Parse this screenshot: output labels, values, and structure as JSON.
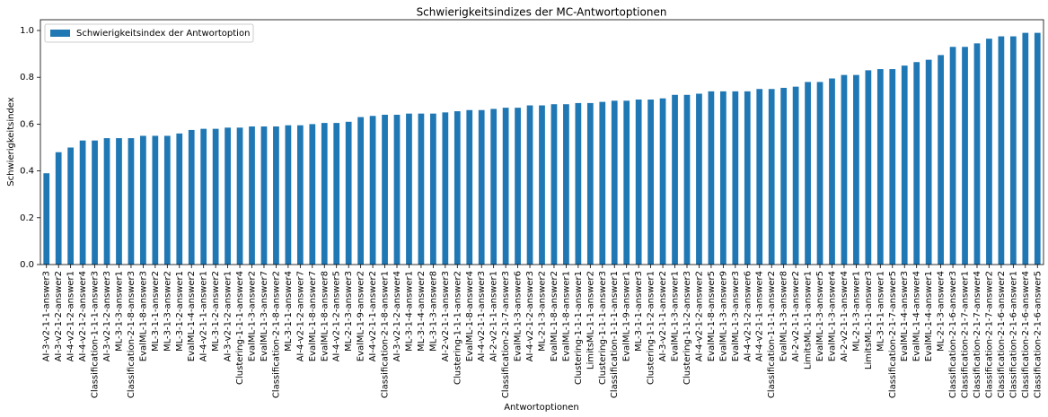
{
  "chart_data": {
    "type": "bar",
    "title": "Schwierigkeitsindizes der MC-Antwortoptionen",
    "xlabel": "Antwortoptionen",
    "ylabel": "Schwierigkeitsindex",
    "legend": "upper left",
    "categories": [
      "AI-3-v2-1-1-answer3",
      "AI-3-v2-1-2-answer2",
      "AI-4-v2-1-2-answer1",
      "AI-4-v2-1-2-answer4",
      "Classification-1-1-1-answer3",
      "AI-3-v2-1-2-answer3",
      "ML-3-1-3-answer1",
      "Classification-2-1-8-answer3",
      "EvalML-1-8-answer3",
      "ML-3-1-1-answer2",
      "ML-3-1-3-answer2",
      "ML-3-1-2-answer1",
      "EvalML-1-4-answer2",
      "AI-4-v2-1-1-answer1",
      "ML-3-1-2-answer2",
      "AI-3-v2-1-2-answer1",
      "Clustering-1-1-1-answer4",
      "EvalML-1-3-answer2",
      "EvalML-1-3-answer7",
      "Classification-2-1-8-answer2",
      "ML-3-1-1-answer4",
      "AI-4-v2-1-2-answer7",
      "EvalML-1-8-answer7",
      "EvalML-1-8-answer8",
      "AI-4-v2-1-2-answer5",
      "ML-2-1-3-answer3",
      "EvalML-1-9-answer2",
      "AI-4-v2-1-1-answer2",
      "Classification-2-1-8-answer1",
      "AI-3-v2-1-2-answer4",
      "ML-3-1-4-answer1",
      "ML-3-1-4-answer2",
      "ML-3-1-3-answer8",
      "AI-2-v2-1-1-answer3",
      "Clustering-1-1-1-answer2",
      "EvalML-1-8-answer4",
      "AI-4-v2-1-1-answer3",
      "AI-2-v2-1-1-answer1",
      "Classification-2-1-7-answer3",
      "EvalML-1-3-answer6",
      "AI-4-v2-1-2-answer3",
      "ML-2-1-3-answer2",
      "EvalML-1-8-answer2",
      "EvalML-1-8-answer1",
      "Clustering-1-1-1-answer1",
      "LimitsML-1-1-answer2",
      "Clustering-1-1-1-answer3",
      "Classification-1-1-1-answer1",
      "EvalML-1-9-answer1",
      "ML-3-1-1-answer3",
      "Clustering-1-1-2-answer1",
      "AI-3-v2-1-1-answer2",
      "EvalML-1-3-answer1",
      "Clustering-1-1-2-answer3",
      "AI-4-v2-1-2-answer2",
      "EvalML-1-8-answer5",
      "EvalML-1-3-answer9",
      "EvalML-1-3-answer3",
      "AI-4-v2-1-2-answer6",
      "AI-4-v2-1-1-answer4",
      "Classification-1-1-1-answer2",
      "EvalML-1-3-answer8",
      "AI-2-v2-1-1-answer2",
      "LimitsML-1-1-answer1",
      "EvalML-1-3-answer5",
      "EvalML-1-3-answer4",
      "AI-2-v2-1-1-answer4",
      "ML-2-1-3-answer1",
      "LimitsML-1-1-answer3",
      "ML-3-1-1-answer1",
      "Classification-2-1-7-answer5",
      "EvalML-1-4-answer3",
      "EvalML-1-4-answer4",
      "EvalML-1-4-answer1",
      "ML-2-1-3-answer4",
      "Classification-2-1-6-answer3",
      "Classification-2-1-7-answer1",
      "Classification-2-1-7-answer4",
      "Classification-2-1-7-answer2",
      "Classification-2-1-6-answer2",
      "Classification-2-1-6-answer1",
      "Classification-2-1-6-answer4",
      "Classification-2-1-6-answer5"
    ],
    "series": [
      {
        "name": "Schwierigkeitsindex der Antwortoption",
        "color": "#1f77b4",
        "values": [
          0.39,
          0.48,
          0.5,
          0.53,
          0.53,
          0.54,
          0.54,
          0.54,
          0.55,
          0.55,
          0.55,
          0.56,
          0.575,
          0.58,
          0.58,
          0.585,
          0.585,
          0.59,
          0.59,
          0.59,
          0.595,
          0.595,
          0.6,
          0.605,
          0.605,
          0.61,
          0.63,
          0.635,
          0.64,
          0.64,
          0.645,
          0.645,
          0.645,
          0.65,
          0.655,
          0.66,
          0.66,
          0.665,
          0.67,
          0.67,
          0.68,
          0.68,
          0.685,
          0.685,
          0.69,
          0.69,
          0.695,
          0.7,
          0.7,
          0.705,
          0.705,
          0.71,
          0.725,
          0.725,
          0.73,
          0.74,
          0.74,
          0.74,
          0.74,
          0.75,
          0.75,
          0.755,
          0.76,
          0.78,
          0.78,
          0.795,
          0.81,
          0.81,
          0.83,
          0.835,
          0.835,
          0.85,
          0.865,
          0.875,
          0.895,
          0.93,
          0.93,
          0.945,
          0.965,
          0.975,
          0.975,
          0.99,
          0.99
        ]
      }
    ],
    "ylim": [
      0,
      1.046
    ],
    "yticks": [
      {
        "value": 0,
        "label": "0.0"
      },
      {
        "value": 0.2,
        "label": "0.2"
      },
      {
        "value": 0.4,
        "label": "0.4"
      },
      {
        "value": 0.6,
        "label": "0.6"
      },
      {
        "value": 0.8,
        "label": "0.8"
      },
      {
        "value": 1,
        "label": "1.0"
      }
    ]
  }
}
